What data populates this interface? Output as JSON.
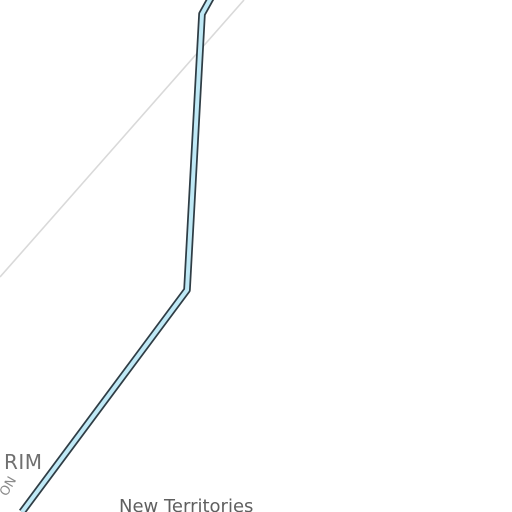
{
  "map": {
    "labels": {
      "district_partial": "RIM",
      "region": "New Territories",
      "road_partial": "ON"
    },
    "colors": {
      "background": "#ffffff",
      "route_fill": "#bfe9f6",
      "route_outline": "#2f3d45",
      "faint_line": "#d9d9d9"
    }
  }
}
